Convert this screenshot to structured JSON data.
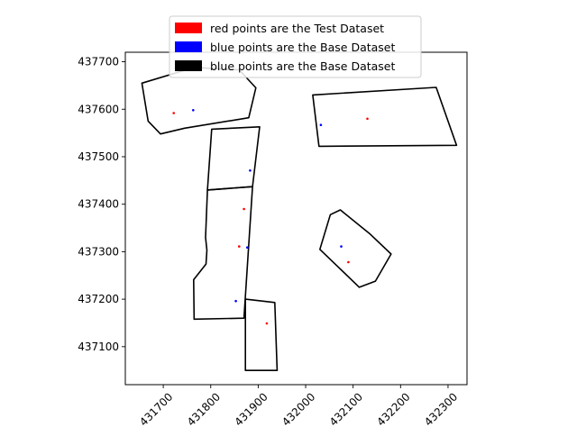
{
  "chart_data": {
    "type": "scatter",
    "title": "",
    "xlabel": "",
    "ylabel": "",
    "xlim": [
      431620,
      432340
    ],
    "ylim": [
      437020,
      437720
    ],
    "xticks": [
      431700,
      431800,
      431900,
      432000,
      432100,
      432200,
      432300
    ],
    "yticks": [
      437100,
      437200,
      437300,
      437400,
      437500,
      437600,
      437700
    ],
    "xtick_labels": [
      "431700",
      "431800",
      "431900",
      "432000",
      "432100",
      "432200",
      "432300"
    ],
    "ytick_labels": [
      "437100",
      "437200",
      "437300",
      "437400",
      "437500",
      "437600",
      "437700"
    ],
    "grid": false,
    "legend": {
      "placement": "top-center",
      "entries": [
        {
          "label": "red points are the Test Dataset",
          "color": "#ff0000"
        },
        {
          "label": "blue points are the Base Dataset",
          "color": "#0000ff"
        },
        {
          "label": "blue points are the Base Dataset",
          "color": "#000000"
        }
      ]
    },
    "series": [
      {
        "color": "#ff0000",
        "points": [
          [
            431722,
            437592
          ],
          [
            432130,
            437580
          ],
          [
            431870,
            437390
          ],
          [
            431860,
            437311
          ],
          [
            432090,
            437278
          ],
          [
            431918,
            437149
          ]
        ]
      },
      {
        "color": "#0000ff",
        "points": [
          [
            431763,
            437598
          ],
          [
            432032,
            437567
          ],
          [
            431883,
            437471
          ],
          [
            431877,
            437309
          ],
          [
            432075,
            437311
          ],
          [
            431853,
            437196
          ]
        ]
      }
    ],
    "polygons": [
      {
        "color": "#000000",
        "vertices": [
          [
            431655,
            437655
          ],
          [
            431765,
            437688
          ],
          [
            431860,
            437683
          ],
          [
            431895,
            437645
          ],
          [
            431880,
            437582
          ],
          [
            431745,
            437560
          ],
          [
            431694,
            437548
          ],
          [
            431668,
            437575
          ]
        ]
      },
      {
        "color": "#000000",
        "vertices": [
          [
            432015,
            437630
          ],
          [
            432275,
            437646
          ],
          [
            432318,
            437524
          ],
          [
            432028,
            437522
          ]
        ]
      },
      {
        "color": "#000000",
        "vertices": [
          [
            431802,
            437558
          ],
          [
            431903,
            437563
          ],
          [
            431888,
            437437
          ],
          [
            431793,
            437430
          ]
        ]
      },
      {
        "color": "#000000",
        "vertices": [
          [
            431793,
            437430
          ],
          [
            431888,
            437437
          ],
          [
            431870,
            437160
          ],
          [
            431765,
            437158
          ],
          [
            431764,
            437241
          ],
          [
            431790,
            437274
          ],
          [
            431792,
            437303
          ],
          [
            431789,
            437330
          ]
        ]
      },
      {
        "color": "#000000",
        "vertices": [
          [
            431873,
            437200
          ],
          [
            431935,
            437193
          ],
          [
            431940,
            437050
          ],
          [
            431873,
            437050
          ]
        ]
      },
      {
        "color": "#000000",
        "vertices": [
          [
            432052,
            437378
          ],
          [
            432073,
            437388
          ],
          [
            432136,
            437337
          ],
          [
            432180,
            437295
          ],
          [
            432147,
            437238
          ],
          [
            432113,
            437225
          ],
          [
            432030,
            437305
          ]
        ]
      }
    ]
  }
}
